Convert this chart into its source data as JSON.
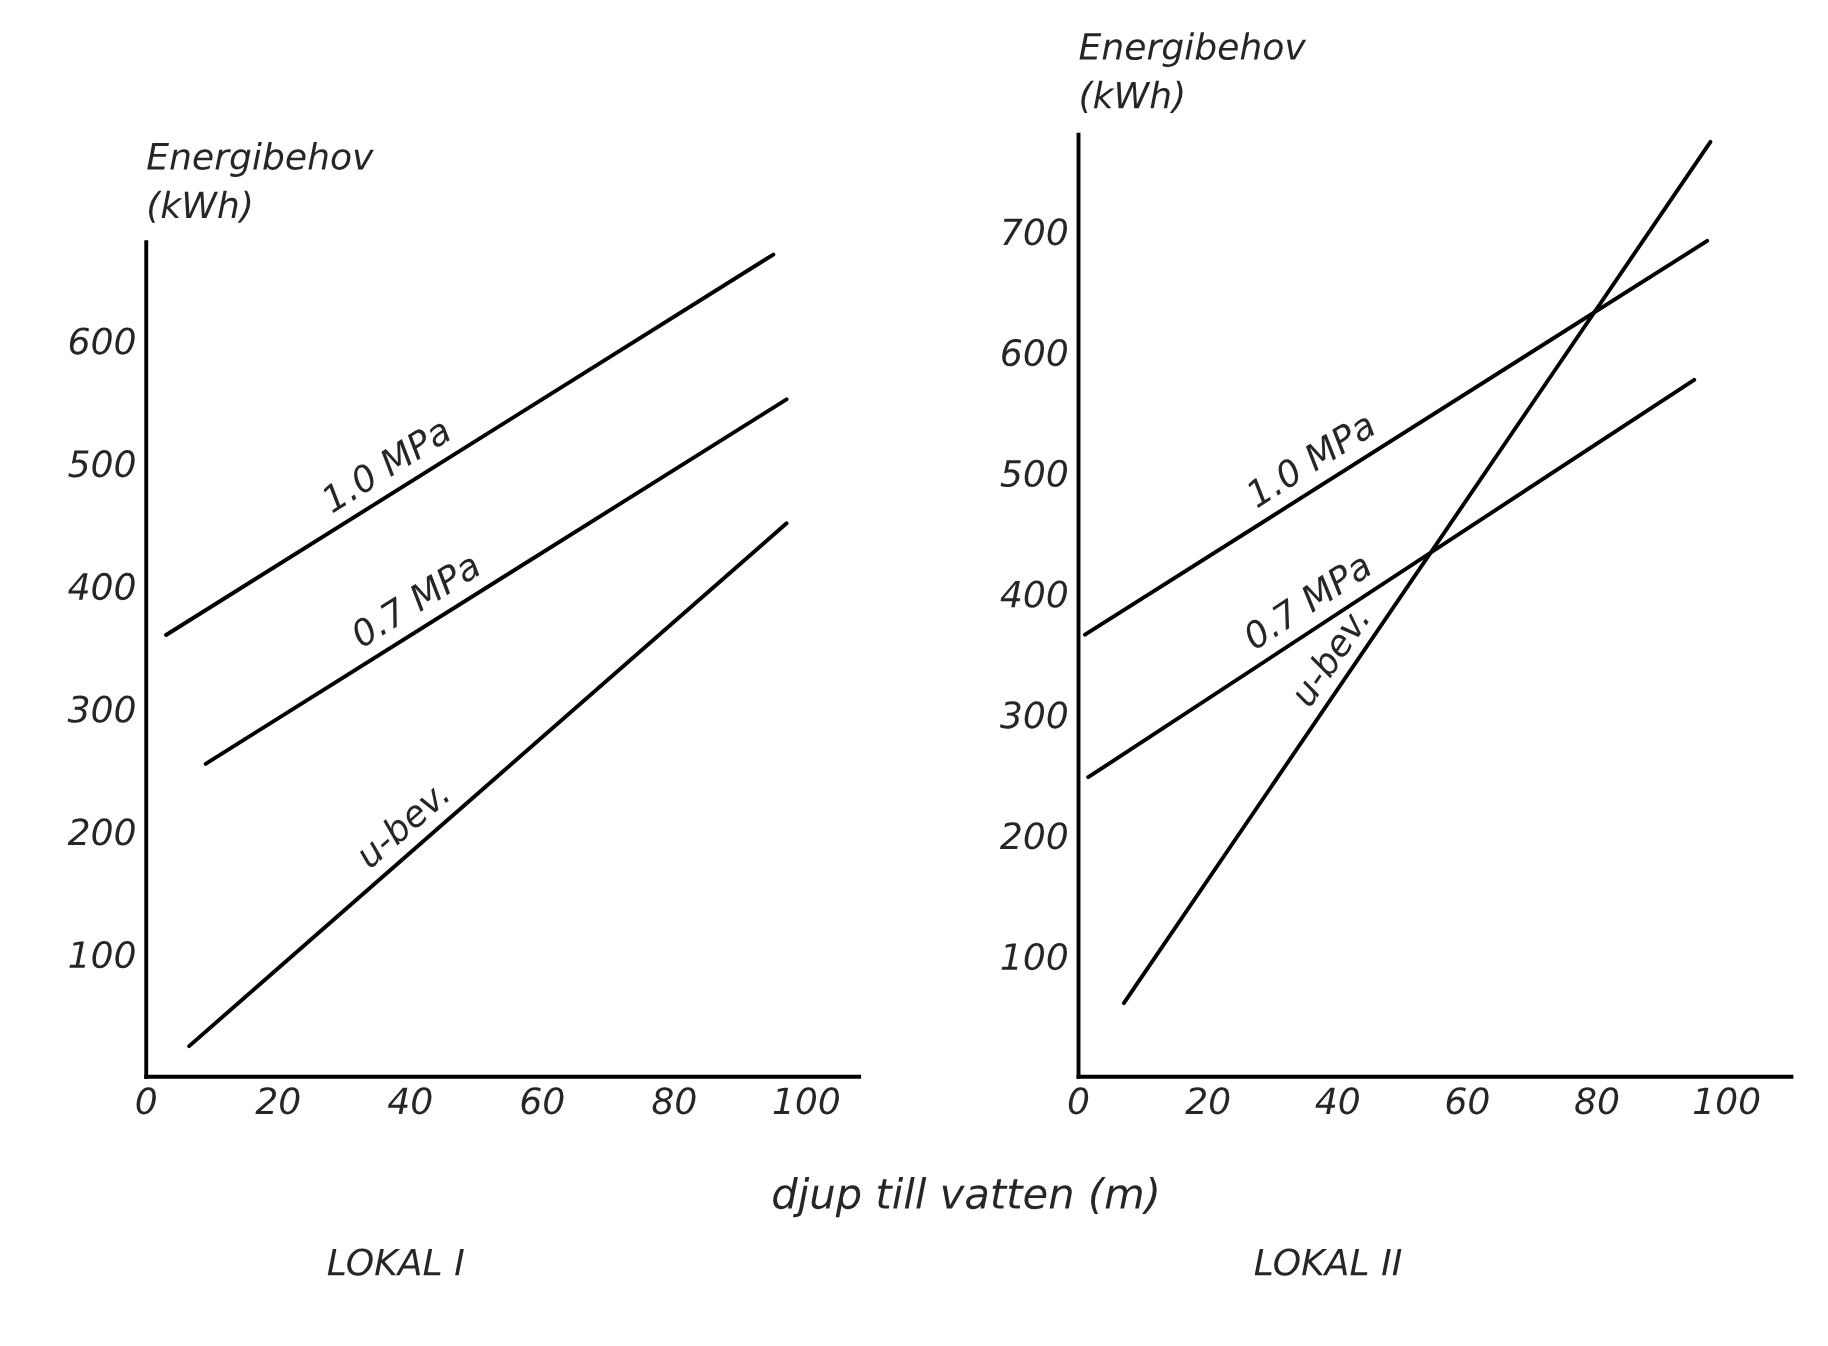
{
  "chart_data": [
    {
      "type": "line",
      "title": "LOKAL I",
      "xlabel": "djup till vatten (m)",
      "ylabel": "Energibehov\n(kWh)",
      "xlim": [
        0,
        108
      ],
      "ylim": [
        0,
        680
      ],
      "xticks": [
        0,
        20,
        40,
        60,
        80,
        100
      ],
      "yticks": [
        100,
        200,
        300,
        400,
        500,
        600
      ],
      "grid": false,
      "legend": false,
      "line_style": "solid",
      "marker": "none",
      "series": [
        {
          "name": "1.0 MPa",
          "color": "#000000",
          "x": [
            3,
            95
          ],
          "values": [
            360,
            670
          ]
        },
        {
          "name": "0.7 MPa",
          "color": "#000000",
          "x": [
            9,
            97
          ],
          "values": [
            255,
            552
          ]
        },
        {
          "name": "u-bev.",
          "color": "#000000",
          "x": [
            6.5,
            97
          ],
          "values": [
            25,
            451
          ]
        }
      ]
    },
    {
      "type": "line",
      "title": "LOKAL II",
      "ylabel": "Energibehov\n(kWh)",
      "xlim": [
        0,
        110
      ],
      "ylim": [
        0,
        780
      ],
      "xticks": [
        0,
        20,
        40,
        60,
        80,
        100
      ],
      "yticks": [
        100,
        200,
        300,
        400,
        500,
        600,
        700
      ],
      "grid": false,
      "legend": false,
      "line_style": "solid",
      "marker": "none",
      "series": [
        {
          "name": "1.0 MPa",
          "color": "#000000",
          "x": [
            1,
            97
          ],
          "values": [
            366,
            692
          ]
        },
        {
          "name": "0.7 MPa",
          "color": "#000000",
          "x": [
            1.5,
            95
          ],
          "values": [
            248,
            577
          ]
        },
        {
          "name": "u-bev.",
          "color": "#000000",
          "x": [
            7,
            97.5
          ],
          "values": [
            61,
            774
          ]
        }
      ]
    }
  ]
}
